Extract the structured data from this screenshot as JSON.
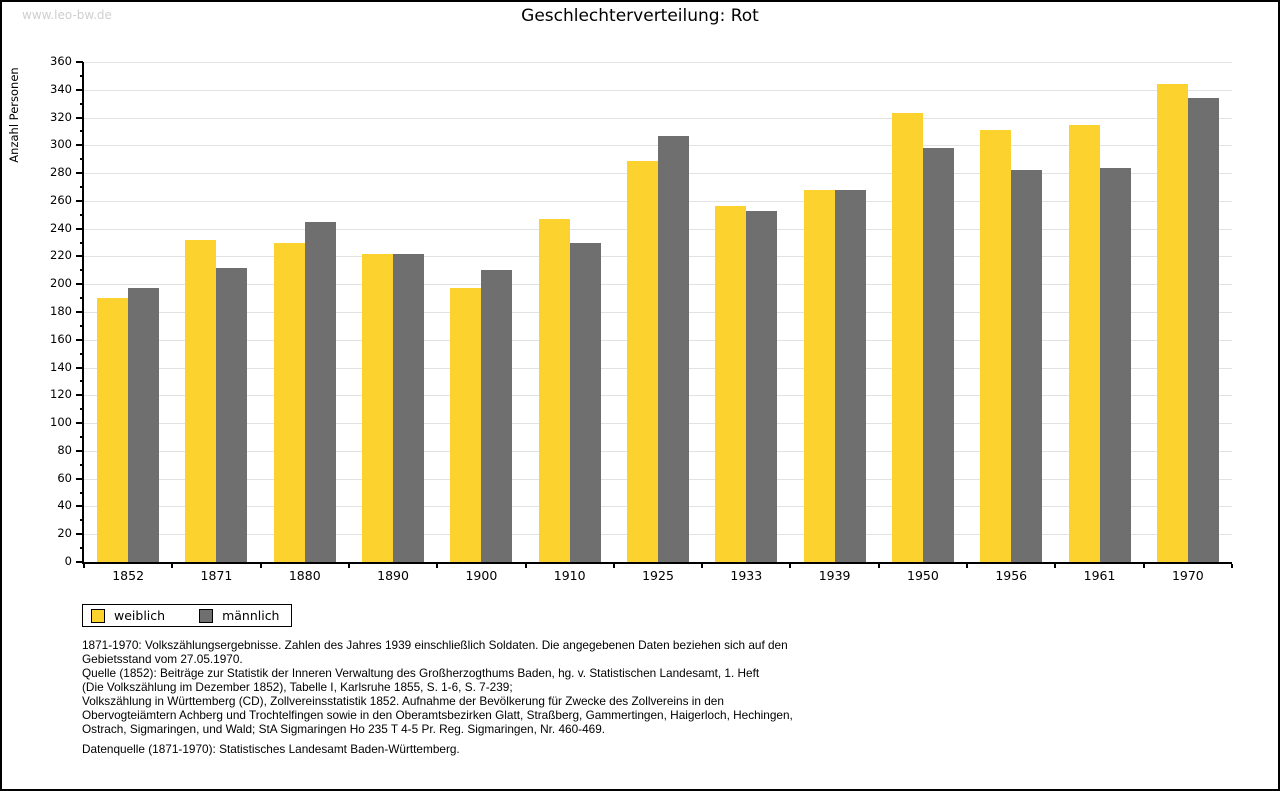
{
  "page": {
    "watermark": "www.leo-bw.de",
    "title": "Geschlechterverteilung: Rot"
  },
  "chart_data": {
    "type": "bar",
    "title": "Geschlechterverteilung: Rot",
    "xlabel": "",
    "ylabel": "Anzahl Personen",
    "ylim": [
      0,
      360
    ],
    "ytick_step": 20,
    "ytick_minor_step": 10,
    "grid": true,
    "legend_position": "bottom-left",
    "categories": [
      "1852",
      "1871",
      "1880",
      "1890",
      "1900",
      "1910",
      "1925",
      "1933",
      "1939",
      "1950",
      "1956",
      "1961",
      "1970"
    ],
    "series": [
      {
        "name": "weiblich",
        "color": "#fcd22e",
        "values": [
          190,
          232,
          230,
          222,
          197,
          247,
          289,
          256,
          268,
          323,
          311,
          315,
          344
        ]
      },
      {
        "name": "männlich",
        "color": "#6f6f6f",
        "values": [
          197,
          212,
          245,
          222,
          210,
          230,
          307,
          253,
          268,
          298,
          282,
          284,
          334
        ]
      }
    ]
  },
  "colors": {
    "weiblich": "#fcd22e",
    "männlich": "#6f6f6f",
    "gridline": "#e2e2e2",
    "axis": "#000000",
    "watermark": "#cfcfcf"
  },
  "footer": {
    "lines": [
      "1871-1970: Volkszählungsergebnisse. Zahlen des Jahres 1939 einschließlich Soldaten. Die angegebenen Daten beziehen sich auf den",
      "Gebietsstand vom 27.05.1970.",
      "Quelle (1852): Beiträge zur Statistik der Inneren Verwaltung des Großherzogthums Baden, hg. v. Statistischen Landesamt, 1. Heft",
      "(Die Volkszählung im Dezember 1852), Tabelle I, Karlsruhe 1855, S. 1-6, S. 7-239;",
      "Volkszählung in Württemberg (CD), Zollvereinsstatistik 1852. Aufnahme der Bevölkerung für Zwecke des Zollvereins in den",
      "Obervogteiämtern Achberg und Trochtelfingen sowie in den Oberamtsbezirken Glatt, Straßberg, Gammertingen, Haigerloch, Hechingen,",
      "Ostrach, Sigmaringen, und Wald; StA Sigmaringen Ho 235 T 4-5 Pr. Reg. Sigmaringen, Nr. 460-469."
    ],
    "datasource": "Datenquelle (1871-1970): Statistisches Landesamt Baden-Württemberg."
  }
}
